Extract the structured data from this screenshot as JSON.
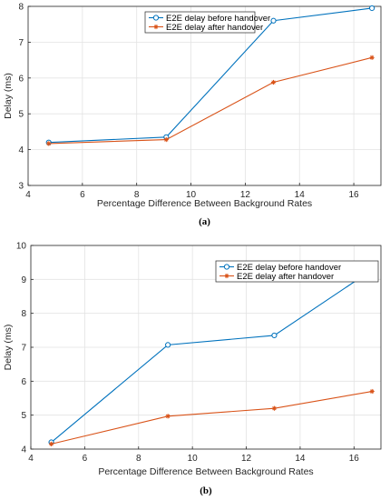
{
  "chart_data": [
    {
      "type": "line",
      "caption": "(a)",
      "xlabel": "Percentage Difference Between Background Rates",
      "ylabel": "Delay (ms)",
      "xlim": [
        4,
        17
      ],
      "ylim": [
        3,
        8
      ],
      "xticks": [
        4,
        6,
        8,
        10,
        12,
        14,
        16
      ],
      "yticks": [
        3,
        4,
        5,
        6,
        7,
        8
      ],
      "grid": true,
      "legend_position": "top-right",
      "series": [
        {
          "name": "E2E delay before handover",
          "color": "#0072BD",
          "marker": "circle",
          "x": [
            4.76,
            9.09,
            13.04,
            16.67
          ],
          "y": [
            4.2,
            4.35,
            7.6,
            7.95
          ]
        },
        {
          "name": "E2E delay after handover",
          "color": "#D95319",
          "marker": "asterisk",
          "x": [
            4.76,
            9.09,
            13.04,
            16.67
          ],
          "y": [
            4.17,
            4.28,
            5.88,
            6.57
          ]
        }
      ]
    },
    {
      "type": "line",
      "caption": "(b)",
      "xlabel": "Percentage Difference Between Background Rates",
      "ylabel": "Delay (ms)",
      "xlim": [
        4,
        17
      ],
      "ylim": [
        4,
        10
      ],
      "xticks": [
        4,
        6,
        8,
        10,
        12,
        14,
        16
      ],
      "yticks": [
        4,
        5,
        6,
        7,
        8,
        9,
        10
      ],
      "grid": true,
      "legend_position": "top-right",
      "series": [
        {
          "name": "E2E delay before handover",
          "color": "#0072BD",
          "marker": "circle",
          "x": [
            4.76,
            9.09,
            13.04,
            16.67
          ],
          "y": [
            4.2,
            7.07,
            7.35,
            9.28
          ]
        },
        {
          "name": "E2E delay after handover",
          "color": "#D95319",
          "marker": "asterisk",
          "x": [
            4.76,
            9.09,
            13.04,
            16.67
          ],
          "y": [
            4.15,
            4.97,
            5.2,
            5.7
          ]
        }
      ]
    }
  ]
}
